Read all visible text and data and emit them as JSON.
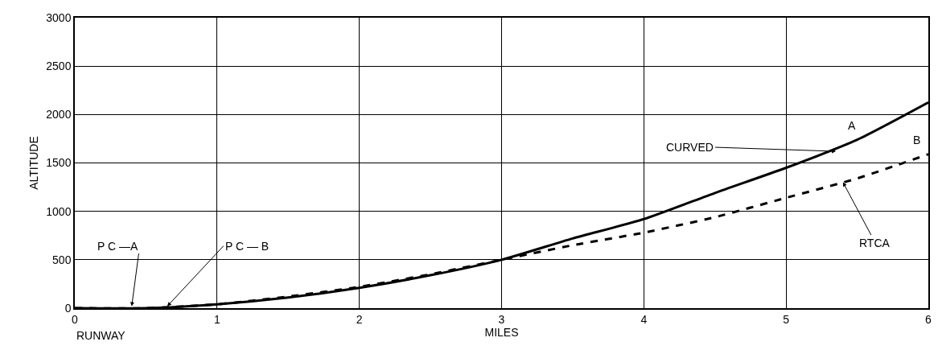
{
  "chart_data": {
    "type": "line",
    "xlabel": "MILES",
    "ylabel": "ALTITUDE",
    "xlim": [
      0,
      6
    ],
    "xticks": [
      0,
      1,
      2,
      3,
      4,
      5,
      6
    ],
    "ylim": [
      0,
      3000
    ],
    "yticks": [
      0,
      500,
      1000,
      1500,
      2000,
      2500,
      3000
    ],
    "grid": true,
    "legend": false,
    "marker": "none",
    "series": [
      {
        "name": "A",
        "color": "#000000",
        "line_style": "solid",
        "x": [
          0,
          0.5,
          1,
          1.5,
          2,
          2.5,
          3,
          3.5,
          4,
          4.5,
          5,
          5.5,
          6
        ],
        "values": [
          0,
          0,
          40,
          110,
          210,
          340,
          500,
          720,
          920,
          1190,
          1450,
          1740,
          2125
        ]
      },
      {
        "name": "B",
        "color": "#000000",
        "line_style": "dashed",
        "x": [
          0,
          0.5,
          1,
          1.5,
          2,
          2.5,
          3,
          3.5,
          4,
          4.5,
          5,
          5.5,
          6
        ],
        "values": [
          0,
          0,
          40,
          120,
          220,
          350,
          500,
          650,
          780,
          940,
          1140,
          1340,
          1590
        ]
      }
    ],
    "annotations": [
      {
        "text": "P C —A",
        "x": 0.4,
        "y": 20
      },
      {
        "text": "P C — B",
        "x": 0.65,
        "y": 20
      },
      {
        "text": "CURVED",
        "x": 5.35,
        "y": 1620
      },
      {
        "text": "RTCA",
        "x": 5.4,
        "y": 1300
      },
      "RUNWAY"
    ]
  }
}
